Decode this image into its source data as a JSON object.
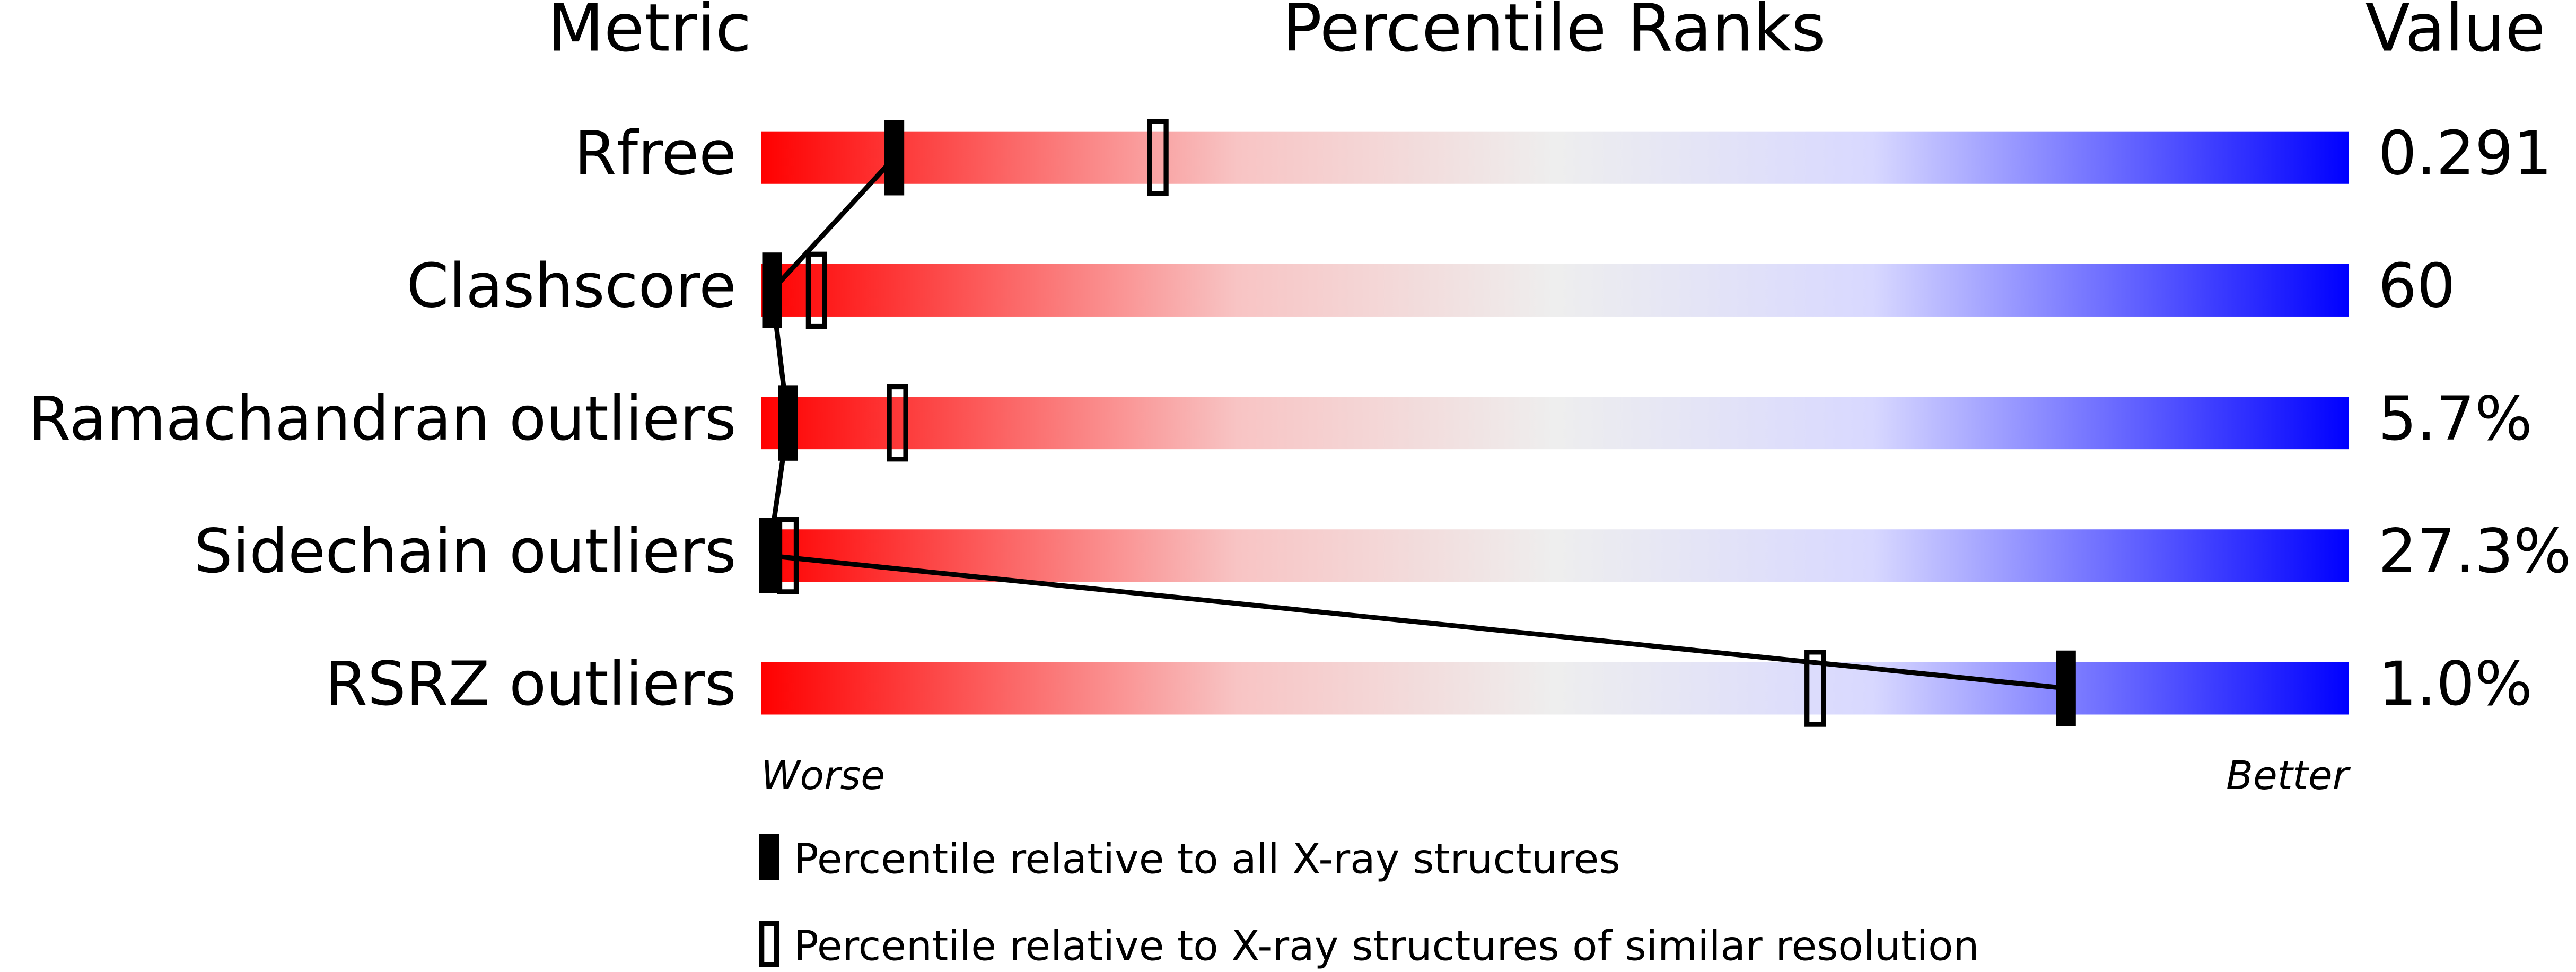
{
  "chart_data": {
    "type": "percentile",
    "headers": [
      "Metric",
      "Percentile Ranks",
      "Value"
    ],
    "categories": [
      "Rfree",
      "Clashscore",
      "Ramachandran outliers",
      "Sidechain outliers",
      "RSRZ outliers"
    ],
    "metric_values": [
      "0.291",
      "60",
      "5.7%",
      "27.3%",
      "1.0%"
    ],
    "xlim": [
      0,
      100
    ],
    "low_label": "Worse",
    "high_label": "Better",
    "series": [
      {
        "name": "Percentile relative to all X-ray structures",
        "color": "#000000",
        "fill": true,
        "values": [
          8.4,
          0.7,
          1.7,
          0.5,
          82.2
        ]
      },
      {
        "name": "Percentile relative to X-ray structures of similar resolution",
        "color": "#000000",
        "fill": false,
        "values": [
          25,
          3.5,
          8.6,
          1.7,
          66.4
        ]
      }
    ]
  }
}
